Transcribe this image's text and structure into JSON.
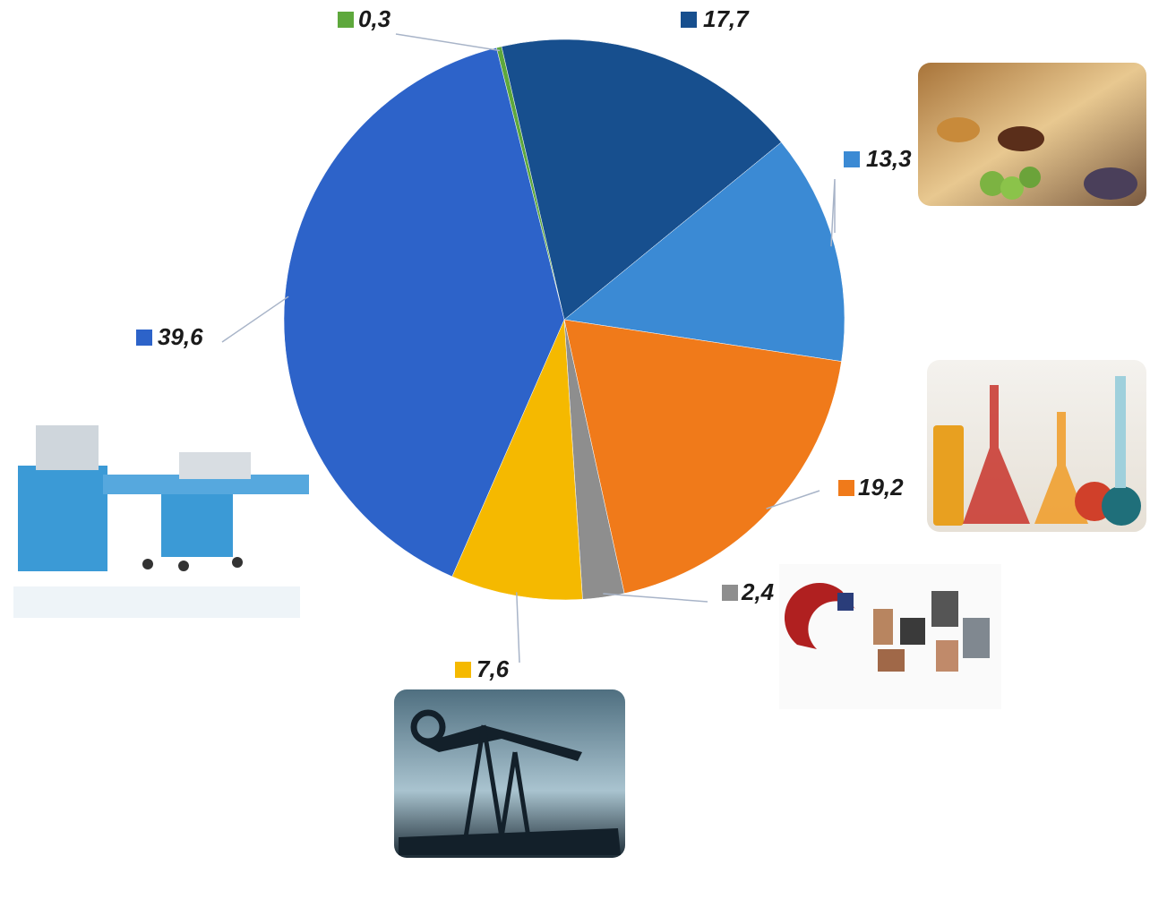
{
  "chart_data": {
    "type": "pie",
    "values": [
      0.3,
      17.7,
      13.3,
      19.2,
      2.4,
      7.6,
      39.6
    ],
    "value_labels": [
      "0,3",
      "17,7",
      "13,3",
      "19,2",
      "2,4",
      "7,6",
      "39,6"
    ],
    "colors": [
      "#5ea83c",
      "#174f8e",
      "#3b8ad4",
      "#f07a1a",
      "#8e8e8e",
      "#f5b900",
      "#2d63c9"
    ]
  }
}
